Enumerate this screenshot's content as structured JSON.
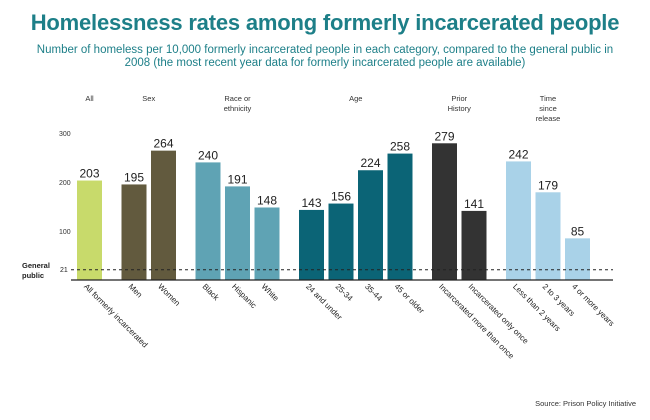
{
  "title": "Homelessness rates among formerly incarcerated people",
  "subtitle": "Number of homeless per 10,000 formerly incarcerated people in each category, compared to the general public in 2008 (the most recent year data for formerly incarcerated people are available)",
  "source": "Source: Prison Policy Initiative",
  "chart_data": {
    "type": "bar",
    "title": "Homelessness rates among formerly incarcerated people",
    "ylim": [
      0,
      300
    ],
    "yticks": [
      "100",
      "200",
      "300"
    ],
    "grid": false,
    "reference": {
      "label_line1": "General",
      "label_line2": "public",
      "value": 21,
      "value_label": "21"
    },
    "groups": [
      {
        "label": [
          "All"
        ],
        "bars": [
          {
            "category": "All formerly incarcerated",
            "value": 203,
            "color": "#c8da6b"
          }
        ]
      },
      {
        "label": [
          "Sex"
        ],
        "bars": [
          {
            "category": "Men",
            "value": 195,
            "color": "#625a3e"
          },
          {
            "category": "Women",
            "value": 264,
            "color": "#625a3e"
          }
        ]
      },
      {
        "label": [
          "Race or",
          "ethnicity"
        ],
        "bars": [
          {
            "category": "Black",
            "value": 240,
            "color": "#5fa3b4"
          },
          {
            "category": "Hispanic",
            "value": 191,
            "color": "#5fa3b4"
          },
          {
            "category": "White",
            "value": 148,
            "color": "#5fa3b4"
          }
        ]
      },
      {
        "label": [
          "Age"
        ],
        "bars": [
          {
            "category": "24 and under",
            "value": 143,
            "color": "#0b6476"
          },
          {
            "category": "25-34",
            "value": 156,
            "color": "#0b6476"
          },
          {
            "category": "35-44",
            "value": 224,
            "color": "#0b6476"
          },
          {
            "category": "45 or older",
            "value": 258,
            "color": "#0b6476"
          }
        ]
      },
      {
        "label": [
          "Prior",
          "History"
        ],
        "bars": [
          {
            "category": "Incarcerated more than once",
            "value": 279,
            "color": "#333333"
          },
          {
            "category": "Incarcerated only once",
            "value": 141,
            "color": "#333333"
          }
        ]
      },
      {
        "label": [
          "Time",
          "since",
          "release"
        ],
        "bars": [
          {
            "category": "Less than 2 years",
            "value": 242,
            "color": "#a9d2e8"
          },
          {
            "category": "2 to 3 years",
            "value": 179,
            "color": "#a9d2e8"
          },
          {
            "category": "4 or more years",
            "value": 85,
            "color": "#a9d2e8"
          }
        ]
      }
    ]
  }
}
